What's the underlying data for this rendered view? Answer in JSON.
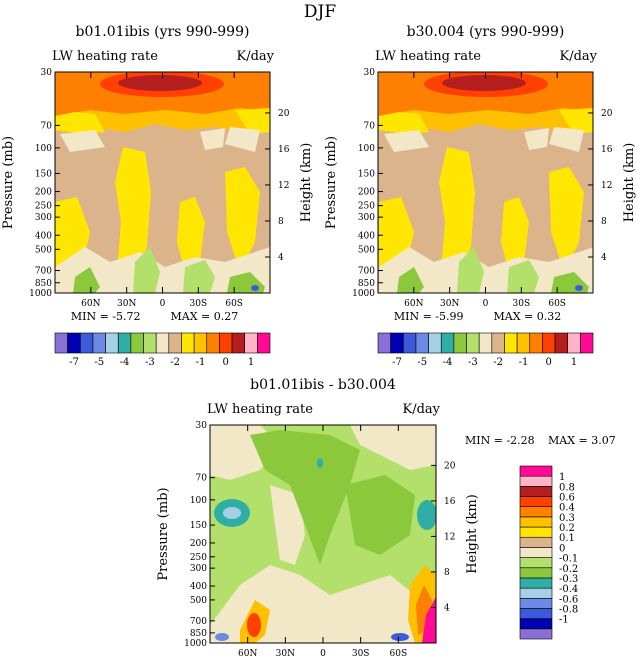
{
  "figure": {
    "title": "DJF"
  },
  "chart_data": [
    {
      "type": "heatmap",
      "title": "b01.01ibis (yrs 990-999)",
      "subtitle_left": "LW heating rate",
      "subtitle_right": "K/day",
      "ylabel": "Pressure (mb)",
      "ylabel_right": "Height (km)",
      "x_ticks": [
        "60N",
        "30N",
        "0",
        "30S",
        "60S"
      ],
      "x_tick_lat": [
        60,
        30,
        0,
        -30,
        -60
      ],
      "xlim": [
        90,
        -90
      ],
      "y_ticks": [
        "30",
        "70",
        "100",
        "150",
        "200",
        "250",
        "300",
        "400",
        "500",
        "700",
        "850",
        "1000"
      ],
      "y_tick_values": [
        30,
        70,
        100,
        150,
        200,
        250,
        300,
        400,
        500,
        700,
        850,
        1000
      ],
      "ylim": [
        1000,
        30
      ],
      "height_ticks": [
        "20",
        "16",
        "12",
        "8",
        "4"
      ],
      "height_km": [
        20,
        16,
        12,
        8,
        4
      ],
      "min_label": "MIN = -5.72",
      "max_label": "MAX = 0.27",
      "min": -5.72,
      "max": 0.27
    },
    {
      "type": "heatmap",
      "title": "b30.004 (yrs 990-999)",
      "subtitle_left": "LW heating rate",
      "subtitle_right": "K/day",
      "ylabel": "Pressure (mb)",
      "ylabel_right": "Height (km)",
      "x_ticks": [
        "60N",
        "30N",
        "0",
        "30S",
        "60S"
      ],
      "x_tick_lat": [
        60,
        30,
        0,
        -30,
        -60
      ],
      "xlim": [
        90,
        -90
      ],
      "y_ticks": [
        "30",
        "70",
        "100",
        "150",
        "200",
        "250",
        "300",
        "400",
        "500",
        "700",
        "850",
        "1000"
      ],
      "y_tick_values": [
        30,
        70,
        100,
        150,
        200,
        250,
        300,
        400,
        500,
        700,
        850,
        1000
      ],
      "ylim": [
        1000,
        30
      ],
      "height_ticks": [
        "20",
        "16",
        "12",
        "8",
        "4"
      ],
      "height_km": [
        20,
        16,
        12,
        8,
        4
      ],
      "min_label": "MIN = -5.99",
      "max_label": "MAX = 0.32",
      "min": -5.99,
      "max": 0.32
    },
    {
      "type": "heatmap",
      "title": "b01.01ibis - b30.004",
      "subtitle_left": "LW heating rate",
      "subtitle_right": "K/day",
      "ylabel": "Pressure (mb)",
      "ylabel_right": "Height (km)",
      "x_ticks": [
        "60N",
        "30N",
        "0",
        "30S",
        "60S"
      ],
      "x_tick_lat": [
        60,
        30,
        0,
        -30,
        -60
      ],
      "xlim": [
        90,
        -90
      ],
      "y_ticks": [
        "30",
        "70",
        "100",
        "150",
        "200",
        "250",
        "300",
        "400",
        "500",
        "700",
        "850",
        "1000"
      ],
      "y_tick_values": [
        30,
        70,
        100,
        150,
        200,
        250,
        300,
        400,
        500,
        700,
        850,
        1000
      ],
      "ylim": [
        1000,
        30
      ],
      "height_ticks": [
        "20",
        "16",
        "12",
        "8",
        "4"
      ],
      "height_km": [
        20,
        16,
        12,
        8,
        4
      ],
      "min_label": "MIN = -2.28",
      "max_label": "MAX = 3.07",
      "min": -2.28,
      "max": 3.07
    }
  ],
  "colorbar_main": {
    "colors": [
      "#8a6fd6",
      "#0000b4",
      "#3c5adc",
      "#6a8ae6",
      "#a6d0e6",
      "#2faea6",
      "#8cc83c",
      "#b2e06a",
      "#f2e8c8",
      "#dcb48c",
      "#ffe600",
      "#ffc000",
      "#ff8000",
      "#ff4000",
      "#b41e1e",
      "#ffb4c8",
      "#ff0a96"
    ],
    "labels": [
      "-7",
      "-5",
      "-4",
      "-3",
      "-2",
      "-1",
      "0",
      "1"
    ],
    "label_slots": [
      1,
      3,
      5,
      7,
      9,
      11,
      13,
      15
    ]
  },
  "colorbar_diff": {
    "colors": [
      "#8a6fd6",
      "#0000b4",
      "#3c5adc",
      "#6a8ae6",
      "#a6d0e6",
      "#2faea6",
      "#8cc83c",
      "#b2e06a",
      "#f2e8c8",
      "#dcb48c",
      "#ffe600",
      "#ffc000",
      "#ff8000",
      "#ff4000",
      "#b41e1e",
      "#ffb4c8",
      "#ff0a96"
    ],
    "labels": [
      "-1",
      "-0.8",
      "-0.6",
      "-0.4",
      "-0.3",
      "-0.2",
      "-0.1",
      "0",
      "0.1",
      "0.2",
      "0.3",
      "0.4",
      "0.6",
      "0.8",
      "1"
    ]
  }
}
